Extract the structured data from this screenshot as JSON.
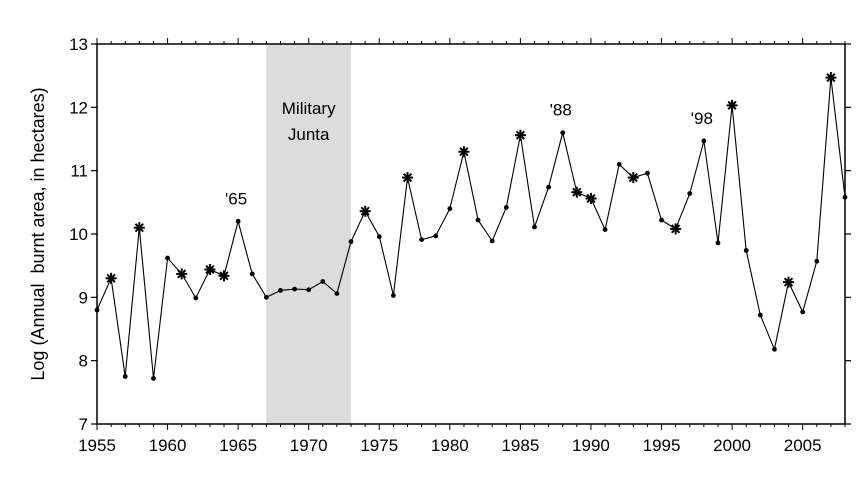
{
  "chart_data": {
    "type": "line",
    "title": "",
    "xlabel": "",
    "ylabel": "Log (Annual  burnt area, in hectares)",
    "xlim": [
      1955,
      2008
    ],
    "ylim": [
      7,
      13
    ],
    "xticks": [
      1955,
      1960,
      1965,
      1970,
      1975,
      1980,
      1985,
      1990,
      1995,
      2000,
      2005
    ],
    "xtick_labels": [
      "1955",
      "1960",
      "1965",
      "1970",
      "1975",
      "1980",
      "1985",
      "1990",
      "1995",
      "2000",
      "2005"
    ],
    "yticks": [
      7,
      8,
      9,
      10,
      11,
      12,
      13
    ],
    "ytick_labels": [
      "7",
      "8",
      "9",
      "10",
      "11",
      "12",
      "13"
    ],
    "grid": false,
    "legend": "none",
    "line_color": "#000000",
    "shaded_region": {
      "x_start": 1967,
      "x_end": 1973,
      "label_line1": "Military",
      "label_line2": "Junta",
      "color": "#dcdcdc"
    },
    "annotations": [
      {
        "text": "'65",
        "x": 1965,
        "y": 10.2
      },
      {
        "text": "'88",
        "x": 1988,
        "y": 11.6
      },
      {
        "text": "'98",
        "x": 1998,
        "y": 11.47
      }
    ],
    "series": [
      {
        "x": [
          1955,
          1956,
          1957,
          1958,
          1959,
          1960,
          1961,
          1962,
          1963,
          1964,
          1965,
          1966,
          1967,
          1968,
          1969,
          1970,
          1971,
          1972,
          1973,
          1974,
          1975,
          1976,
          1977,
          1978,
          1979,
          1980,
          1981,
          1982,
          1983,
          1984,
          1985,
          1986,
          1987,
          1988,
          1989,
          1990,
          1991,
          1992,
          1993,
          1994,
          1995,
          1996,
          1997,
          1998,
          1999,
          2000,
          2001,
          2002,
          2003,
          2004,
          2005,
          2006,
          2007,
          2008
        ],
        "y": [
          8.8,
          9.3,
          7.75,
          10.1,
          7.72,
          9.62,
          9.37,
          8.99,
          9.44,
          9.34,
          10.2,
          9.37,
          9.0,
          9.11,
          9.13,
          9.12,
          9.25,
          9.06,
          9.88,
          10.36,
          9.96,
          9.03,
          10.89,
          9.91,
          9.97,
          10.4,
          11.3,
          10.22,
          9.89,
          10.42,
          11.56,
          10.11,
          10.74,
          11.6,
          10.66,
          10.56,
          10.07,
          11.1,
          10.89,
          10.96,
          10.22,
          10.08,
          10.64,
          11.47,
          9.86,
          12.03,
          9.74,
          8.72,
          8.18,
          9.24,
          8.77,
          9.57,
          12.47,
          10.58
        ],
        "star_years": [
          1956,
          1958,
          1961,
          1963,
          1964,
          1974,
          1977,
          1981,
          1985,
          1989,
          1990,
          1993,
          1996,
          2000,
          2004,
          2007
        ]
      }
    ]
  }
}
